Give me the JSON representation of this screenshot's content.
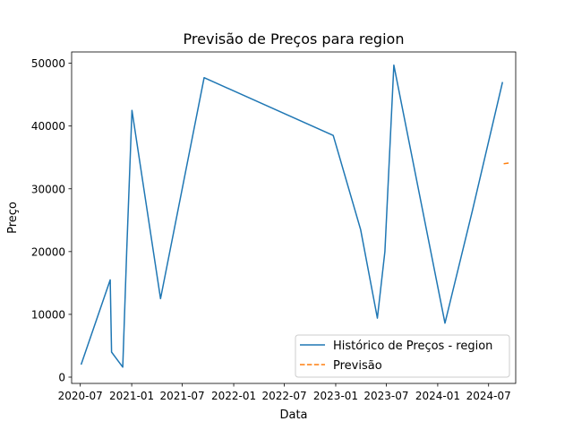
{
  "chart_data": {
    "type": "line",
    "title": "Previsão de Preços para region",
    "xlabel": "Data",
    "ylabel": "Preço",
    "xlim": [
      "2020-05-31",
      "2024-10-06"
    ],
    "ylim": [
      -1000,
      51800
    ],
    "x_ticks": [
      "2020-07",
      "2021-01",
      "2021-07",
      "2022-01",
      "2022-07",
      "2023-01",
      "2023-07",
      "2024-01",
      "2024-07"
    ],
    "y_ticks": [
      0,
      10000,
      20000,
      30000,
      40000,
      50000
    ],
    "grid": false,
    "legend_position": "lower right",
    "series": [
      {
        "name": "Histórico de Preços - region",
        "color": "#1f77b4",
        "style": "solid",
        "points": [
          [
            "2020-07-04",
            2000
          ],
          [
            "2020-10-16",
            15500
          ],
          [
            "2020-10-21",
            4000
          ],
          [
            "2020-11-30",
            1600
          ],
          [
            "2020-12-14",
            20000
          ],
          [
            "2021-01-02",
            42500
          ],
          [
            "2021-04-14",
            12500
          ],
          [
            "2021-09-17",
            47700
          ],
          [
            "2022-12-23",
            38500
          ],
          [
            "2023-03-31",
            23500
          ],
          [
            "2023-05-30",
            9400
          ],
          [
            "2023-06-26",
            20000
          ],
          [
            "2023-07-28",
            49700
          ],
          [
            "2024-01-27",
            8600
          ],
          [
            "2024-05-04",
            26500
          ],
          [
            "2024-08-20",
            47000
          ]
        ]
      },
      {
        "name": "Previsão",
        "color": "#ff7f0e",
        "style": "dashed",
        "points": [
          [
            "2024-08-24",
            34000
          ],
          [
            "2024-09-11",
            34100
          ]
        ]
      }
    ]
  }
}
